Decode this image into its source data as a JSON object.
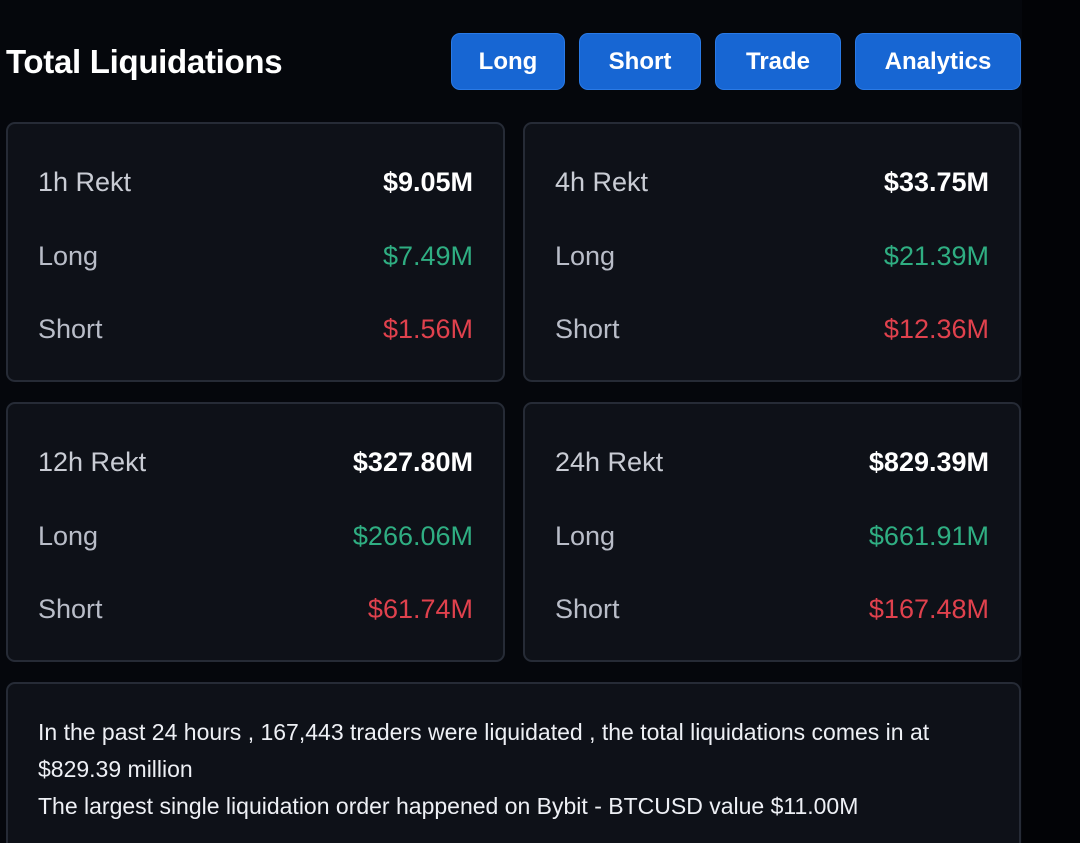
{
  "header": {
    "title": "Total Liquidations",
    "buttons": {
      "long": "Long",
      "short": "Short",
      "trade": "Trade",
      "analytics": "Analytics"
    }
  },
  "cards": {
    "h1": {
      "period": "1h Rekt",
      "total": "$9.05M",
      "long_label": "Long",
      "long": "$7.49M",
      "short_label": "Short",
      "short": "$1.56M"
    },
    "h4": {
      "period": "4h Rekt",
      "total": "$33.75M",
      "long_label": "Long",
      "long": "$21.39M",
      "short_label": "Short",
      "short": "$12.36M"
    },
    "h12": {
      "period": "12h Rekt",
      "total": "$327.80M",
      "long_label": "Long",
      "long": "$266.06M",
      "short_label": "Short",
      "short": "$61.74M"
    },
    "h24": {
      "period": "24h Rekt",
      "total": "$829.39M",
      "long_label": "Long",
      "long": "$661.91M",
      "short_label": "Short",
      "short": "$167.48M"
    }
  },
  "summary": {
    "line1": "In the past 24 hours , 167,443 traders were liquidated , the total liquidations comes in at $829.39 million",
    "line2": "The largest single liquidation order happened on Bybit - BTCUSD value $11.00M"
  },
  "colors": {
    "accent": "#1766d3",
    "long": "#2fae82",
    "short": "#e0414d",
    "background": "#05070c",
    "card": "#0e1118"
  }
}
